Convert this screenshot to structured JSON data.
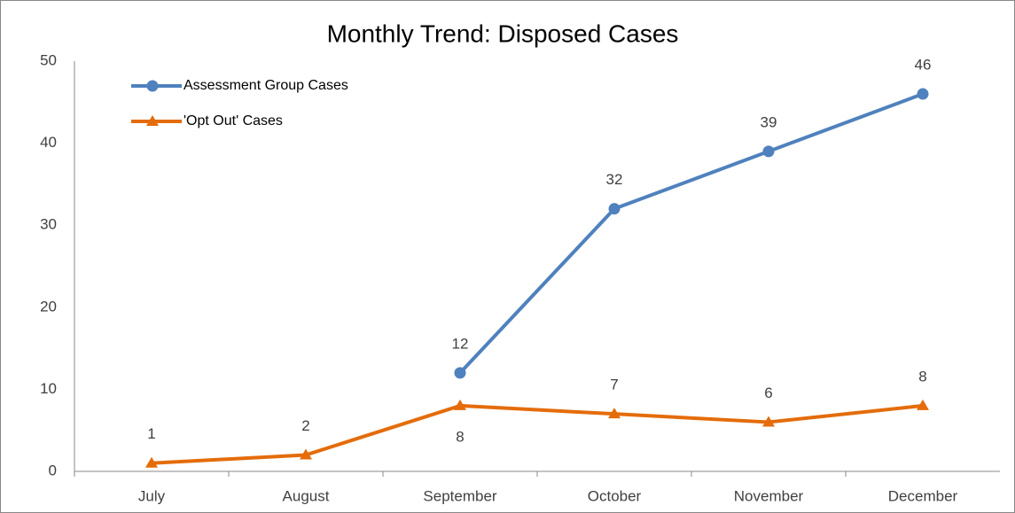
{
  "chart_data": {
    "type": "line",
    "title": "Monthly Trend: Disposed Cases",
    "categories": [
      "July",
      "August",
      "September",
      "October",
      "November",
      "December"
    ],
    "series": [
      {
        "name": "Assessment Group Cases",
        "color": "#4f81bd",
        "marker": "circle",
        "values": [
          null,
          null,
          12,
          32,
          39,
          46
        ]
      },
      {
        "name": "'Opt Out' Cases",
        "color": "#e46c0a",
        "marker": "triangle",
        "values": [
          1,
          2,
          8,
          7,
          6,
          8
        ]
      }
    ],
    "ylim": [
      0,
      50
    ],
    "yticks": [
      0,
      10,
      20,
      30,
      40,
      50
    ],
    "grid": false,
    "legend": "top-left",
    "data_labels": true
  }
}
